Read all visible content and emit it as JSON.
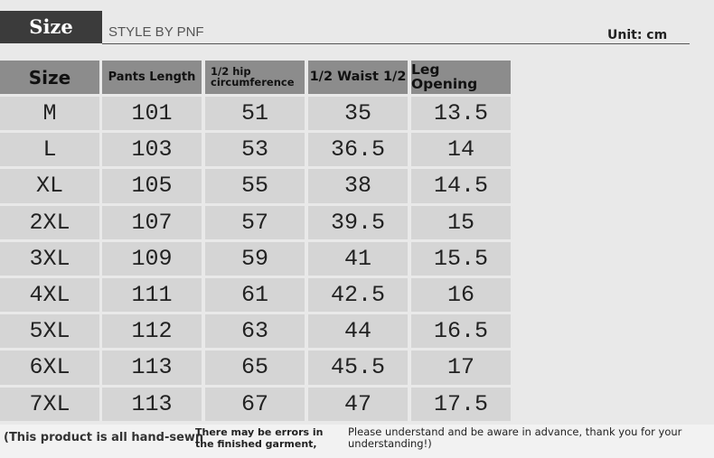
{
  "header": {
    "badge": "Size",
    "style": "STYLE BY PNF",
    "unit": "Unit: cm"
  },
  "table": {
    "columns": [
      "Size",
      "Pants Length",
      "1/2 hip circumference",
      "1/2 Waist 1/2",
      "Leg Opening"
    ],
    "rows": [
      [
        "M",
        101,
        51,
        35,
        13.5
      ],
      [
        "L",
        103,
        53,
        36.5,
        14
      ],
      [
        "XL",
        105,
        55,
        38,
        14.5
      ],
      [
        "2XL",
        107,
        57,
        39.5,
        15
      ],
      [
        "3XL",
        109,
        59,
        41,
        15.5
      ],
      [
        "4XL",
        111,
        61,
        42.5,
        16
      ],
      [
        "5XL",
        112,
        63,
        44,
        16.5
      ],
      [
        "6XL",
        113,
        65,
        45.5,
        17
      ],
      [
        "7XL",
        113,
        67,
        47,
        17.5
      ]
    ]
  },
  "footer": {
    "note1": "(This product is all hand-sewn",
    "note2": "There may be errors in the finished garment,",
    "note3": "Please understand and be aware in advance, thank you for your understanding!)"
  }
}
